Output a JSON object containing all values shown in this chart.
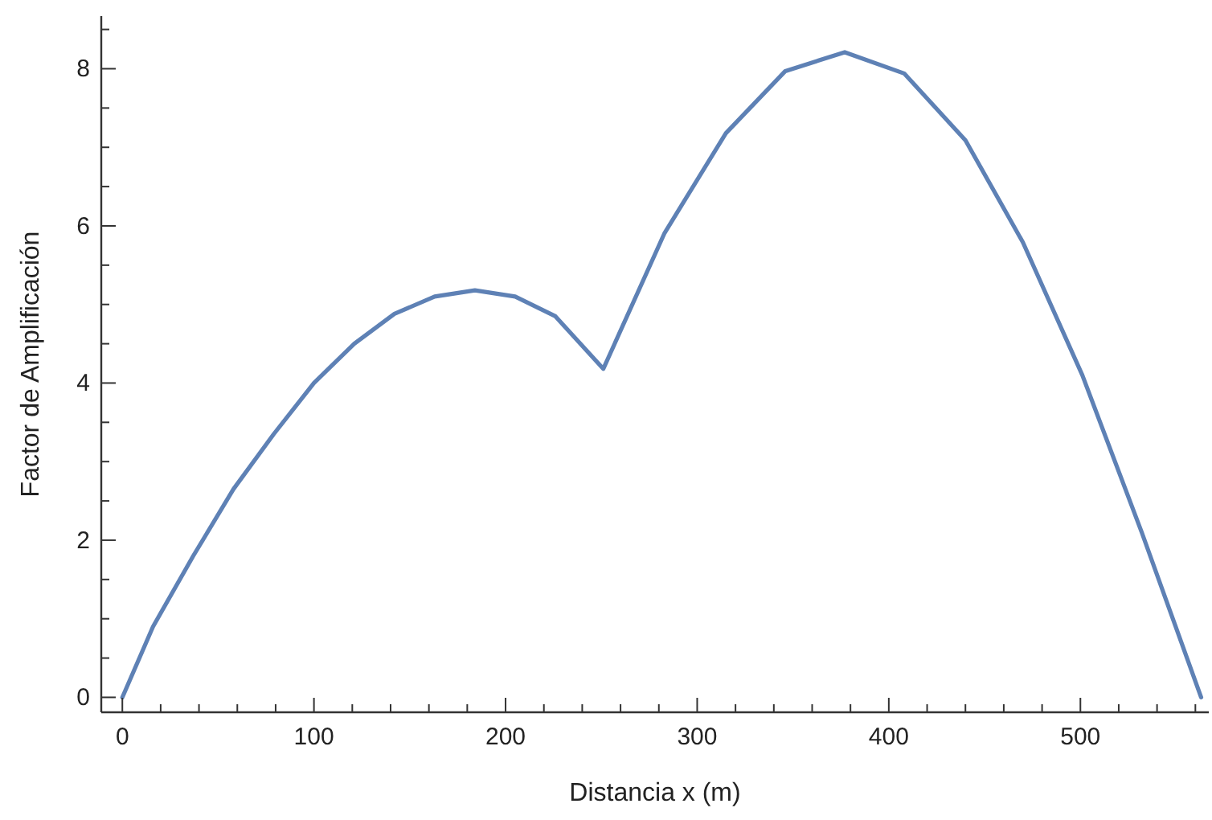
{
  "chart_data": {
    "type": "line",
    "xlabel": "Distancia x (m)",
    "ylabel": "Factor de Amplificación",
    "x": [
      0,
      16,
      37,
      58,
      79,
      100,
      121,
      142,
      163,
      184,
      205,
      226,
      251,
      283,
      315,
      346,
      377,
      408,
      440,
      470,
      501,
      532,
      563
    ],
    "series": [
      {
        "color": "#5e81b5",
        "values": [
          0,
          0.9,
          1.8,
          2.65,
          3.35,
          4.0,
          4.5,
          4.88,
          5.1,
          5.18,
          5.1,
          4.85,
          4.18,
          5.91,
          7.18,
          7.97,
          8.21,
          7.94,
          7.09,
          5.79,
          4.1,
          2.1,
          0
        ]
      }
    ],
    "xlim": [
      -11,
      567
    ],
    "ylim": [
      -0.19,
      8.67
    ],
    "xticks": [
      0,
      {
        "value": 20,
        "label": null
      },
      {
        "value": 40,
        "label": null
      },
      {
        "value": 60,
        "label": null
      },
      {
        "value": 80,
        "label": null
      },
      100,
      {
        "value": 120,
        "label": null
      },
      {
        "value": 140,
        "label": null
      },
      {
        "value": 160,
        "label": null
      },
      {
        "value": 180,
        "label": null
      },
      200,
      {
        "value": 220,
        "label": null
      },
      {
        "value": 240,
        "label": null
      },
      {
        "value": 260,
        "label": null
      },
      {
        "value": 280,
        "label": null
      },
      300,
      {
        "value": 320,
        "label": null
      },
      {
        "value": 340,
        "label": null
      },
      {
        "value": 360,
        "label": null
      },
      {
        "value": 380,
        "label": null
      },
      400,
      {
        "value": 420,
        "label": null
      },
      {
        "value": 440,
        "label": null
      },
      {
        "value": 460,
        "label": null
      },
      {
        "value": 480,
        "label": null
      },
      500,
      {
        "value": 520,
        "label": null
      },
      {
        "value": 540,
        "label": null
      },
      {
        "value": 560,
        "label": null
      }
    ],
    "yticks": [
      0,
      {
        "value": 0.5,
        "label": null
      },
      {
        "value": 1,
        "label": null
      },
      {
        "value": 1.5,
        "label": null
      },
      2,
      {
        "value": 2.5,
        "label": null
      },
      {
        "value": 3,
        "label": null
      },
      {
        "value": 3.5,
        "label": null
      },
      4,
      {
        "value": 4.5,
        "label": null
      },
      {
        "value": 5,
        "label": null
      },
      {
        "value": 5.5,
        "label": null
      },
      6,
      {
        "value": 6.5,
        "label": null
      },
      {
        "value": 7,
        "label": null
      },
      {
        "value": 7.5,
        "label": null
      },
      8,
      {
        "value": 8.5,
        "label": null
      }
    ],
    "grid": false,
    "marker": "none",
    "line_style": "solid"
  }
}
